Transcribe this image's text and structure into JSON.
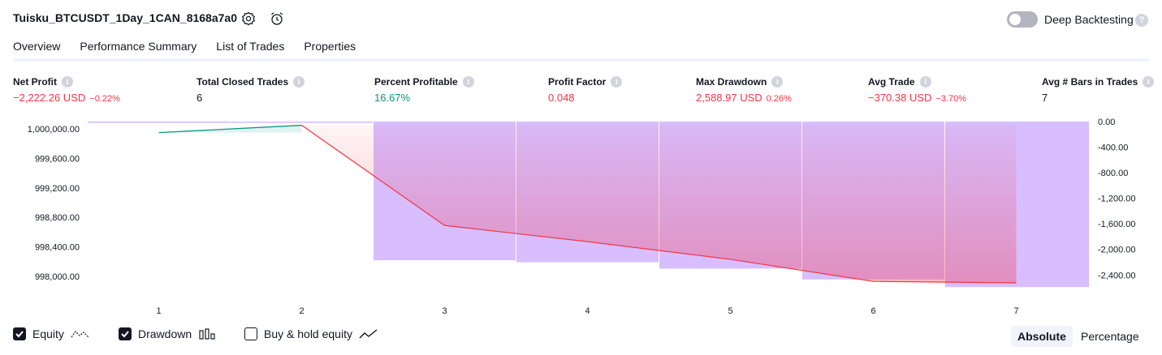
{
  "header": {
    "title": "Tuisku_BTCUSDT_1Day_1CAN_8168a7a0",
    "deep_backtesting_label": "Deep Backtesting",
    "deep_backtesting_on": false
  },
  "tabs": [
    {
      "label": "Overview",
      "active": true
    },
    {
      "label": "Performance Summary",
      "active": false
    },
    {
      "label": "List of Trades",
      "active": false
    },
    {
      "label": "Properties",
      "active": false
    }
  ],
  "metrics": [
    {
      "label": "Net Profit",
      "value": "−2,222.26 USD",
      "sub": "−0.22%",
      "tone": "neg"
    },
    {
      "label": "Total Closed Trades",
      "value": "6",
      "sub": "",
      "tone": "dark"
    },
    {
      "label": "Percent Profitable",
      "value": "16.67%",
      "sub": "",
      "tone": "pos"
    },
    {
      "label": "Profit Factor",
      "value": "0.048",
      "sub": "",
      "tone": "neg"
    },
    {
      "label": "Max Drawdown",
      "value": "2,588.97 USD",
      "sub": "0.26%",
      "tone": "neg"
    },
    {
      "label": "Avg Trade",
      "value": "−370.38 USD",
      "sub": "−3.70%",
      "tone": "neg"
    },
    {
      "label": "Avg # Bars in Trades",
      "value": "7",
      "sub": "",
      "tone": "dark"
    }
  ],
  "colors": {
    "equity_up": "#089981",
    "equity_down": "#f23645",
    "drawdown": "#d1b3ff",
    "accent": "#131722"
  },
  "chart_data": {
    "type": "line",
    "x": [
      1,
      2,
      3,
      4,
      5,
      6,
      7
    ],
    "series": [
      {
        "name": "Equity",
        "values": [
          999950,
          1000050,
          998690,
          998470,
          998230,
          997930,
          997910
        ]
      },
      {
        "name": "Drawdown",
        "values": [
          0,
          -20,
          -2170,
          -2200,
          -2300,
          -2470,
          -2589
        ]
      }
    ],
    "y_left_ticks": [
      "1,000,000.00",
      "999,600.00",
      "999,200.00",
      "998,800.00",
      "998,400.00",
      "998,000.00"
    ],
    "y_left_range": [
      997800,
      1000100
    ],
    "y_right_ticks": [
      "0.00",
      "-400.00",
      "-800.00",
      "-1,200.00",
      "-1,600.00",
      "-2,000.00",
      "-2,400.00"
    ],
    "y_right_range": [
      -2650,
      0
    ],
    "x_tick_labels": [
      "1",
      "2",
      "3",
      "4",
      "5",
      "6",
      "7"
    ]
  },
  "footer": {
    "checks": [
      {
        "label": "Equity",
        "checked": true,
        "icon": "equity-line-icon"
      },
      {
        "label": "Drawdown",
        "checked": true,
        "icon": "drawdown-bars-icon"
      },
      {
        "label": "Buy & hold equity",
        "checked": false,
        "icon": "buy-hold-line-icon"
      }
    ],
    "modes": [
      {
        "label": "Absolute",
        "active": true
      },
      {
        "label": "Percentage",
        "active": false
      }
    ]
  }
}
